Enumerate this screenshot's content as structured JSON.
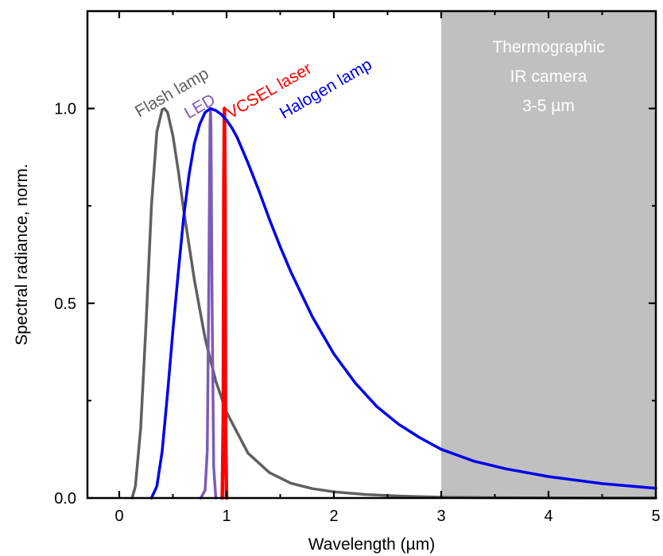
{
  "chart_data": {
    "type": "line",
    "xlabel": "Wavelength (µm)",
    "ylabel": "Spectral radiance, norm.",
    "xlim": [
      -0.3,
      5
    ],
    "ylim": [
      0,
      1.25
    ],
    "x_ticks": [
      0,
      1,
      2,
      3,
      4,
      5
    ],
    "x_tick_labels": [
      "0",
      "1",
      "2",
      "3",
      "4",
      "5"
    ],
    "y_ticks": [
      0.0,
      0.5,
      1.0
    ],
    "y_tick_labels": [
      "0.0",
      "0.5",
      "1.0"
    ],
    "grid": false,
    "region": {
      "x_start": 3,
      "x_end": 5,
      "color": "#c0c0c0",
      "label_lines": [
        "Thermographic",
        "IR camera",
        "3-5 µm"
      ]
    },
    "series": [
      {
        "name": "Flash lamp",
        "color": "#606060",
        "x": [
          0.12,
          0.15,
          0.2,
          0.25,
          0.3,
          0.35,
          0.4,
          0.42,
          0.45,
          0.5,
          0.55,
          0.6,
          0.7,
          0.8,
          0.9,
          1.0,
          1.2,
          1.4,
          1.6,
          1.8,
          2.0,
          2.3,
          2.6,
          3.0,
          3.5,
          4.0,
          4.5,
          5.0
        ],
        "y": [
          0.0,
          0.03,
          0.18,
          0.45,
          0.75,
          0.94,
          0.997,
          1.0,
          0.99,
          0.93,
          0.84,
          0.74,
          0.56,
          0.41,
          0.3,
          0.22,
          0.115,
          0.065,
          0.038,
          0.024,
          0.016,
          0.009,
          0.005,
          0.002,
          0.0008,
          0.0003,
          0.0001,
          0.0
        ]
      },
      {
        "name": "LED",
        "color": "#7b5cb8",
        "x": [
          0.76,
          0.8,
          0.82,
          0.835,
          0.845,
          0.85,
          0.855,
          0.865,
          0.88,
          0.9
        ],
        "y": [
          0.0,
          0.02,
          0.12,
          0.55,
          0.95,
          1.0,
          0.95,
          0.5,
          0.08,
          0.0
        ]
      },
      {
        "name": "VCSEL laser",
        "color": "#ff0000",
        "x": [
          0.96,
          0.97,
          0.975,
          0.98,
          0.985,
          0.99,
          1.0
        ],
        "y": [
          0.0,
          0.2,
          0.8,
          1.0,
          0.8,
          0.2,
          0.0
        ]
      },
      {
        "name": "Halogen lamp",
        "color": "#0000ee",
        "x": [
          0.3,
          0.35,
          0.4,
          0.45,
          0.5,
          0.55,
          0.6,
          0.65,
          0.7,
          0.75,
          0.8,
          0.85,
          0.9,
          0.95,
          1.0,
          1.05,
          1.1,
          1.2,
          1.3,
          1.4,
          1.5,
          1.6,
          1.8,
          2.0,
          2.2,
          2.4,
          2.6,
          2.8,
          3.0,
          3.3,
          3.6,
          4.0,
          4.5,
          5.0
        ],
        "y": [
          0.0,
          0.03,
          0.12,
          0.27,
          0.43,
          0.58,
          0.72,
          0.83,
          0.91,
          0.96,
          0.99,
          1.0,
          0.995,
          0.985,
          0.97,
          0.95,
          0.925,
          0.86,
          0.79,
          0.715,
          0.645,
          0.58,
          0.465,
          0.37,
          0.295,
          0.235,
          0.19,
          0.155,
          0.125,
          0.095,
          0.075,
          0.055,
          0.037,
          0.025
        ]
      }
    ]
  }
}
